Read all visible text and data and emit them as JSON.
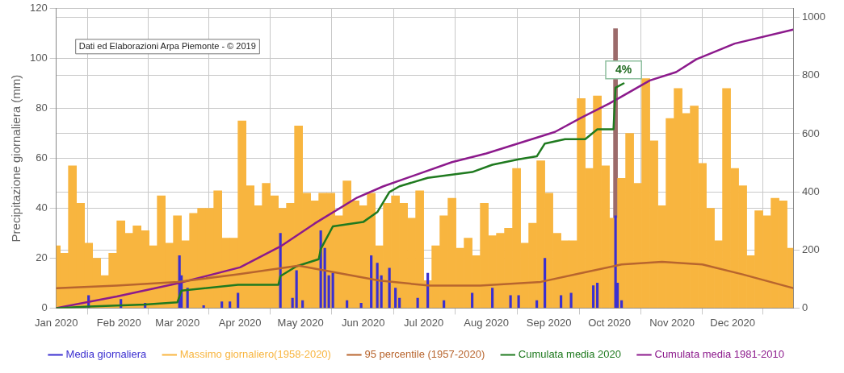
{
  "chart_data": {
    "type": "bar",
    "ylabel": "Precipitazione giornaliera (mm)",
    "xlim": [
      "2020-01-01",
      "2020-12-31"
    ],
    "xticks": [
      {
        "value": "2020-01-01",
        "label": "Jan 2020"
      },
      {
        "value": "2020-02-01",
        "label": "Feb 2020"
      },
      {
        "value": "2020-03-01",
        "label": "Mar 2020"
      },
      {
        "value": "2020-04-01",
        "label": "Apr 2020"
      },
      {
        "value": "2020-05-01",
        "label": "May 2020"
      },
      {
        "value": "2020-06-01",
        "label": "Jun 2020"
      },
      {
        "value": "2020-07-01",
        "label": "Jul 2020"
      },
      {
        "value": "2020-08-01",
        "label": "Aug 2020"
      },
      {
        "value": "2020-09-01",
        "label": "Sep 2020"
      },
      {
        "value": "2020-10-01",
        "label": "Oct 2020"
      },
      {
        "value": "2020-11-01",
        "label": "Nov 2020"
      },
      {
        "value": "2020-12-01",
        "label": "Dec 2020"
      }
    ],
    "ylim": [
      0,
      120
    ],
    "yticks": [
      0,
      20,
      40,
      60,
      80,
      100,
      120
    ],
    "y2lim": [
      0,
      1030
    ],
    "y2ticks": [
      0,
      200,
      400,
      600,
      800,
      1000
    ],
    "grid": true,
    "legend": "bottom",
    "marker": "none",
    "line_style": "solid",
    "annotations": [
      "Dati ed Elaborazioni Arpa Piemonte - © 2019",
      {
        "text": "4%",
        "x": "2020-10-08",
        "y": 90
      }
    ],
    "series": [
      {
        "name": "Media giornaliera",
        "color": "#3b2fd0",
        "x": [
          "2020-01-17",
          "2020-02-02",
          "2020-02-14",
          "2020-03-02",
          "2020-03-03",
          "2020-03-06",
          "2020-03-14",
          "2020-03-23",
          "2020-03-27",
          "2020-03-31",
          "2020-04-21",
          "2020-04-27",
          "2020-04-29",
          "2020-05-02",
          "2020-05-11",
          "2020-05-13",
          "2020-05-15",
          "2020-05-17",
          "2020-05-24",
          "2020-05-31",
          "2020-06-05",
          "2020-06-08",
          "2020-06-10",
          "2020-06-14",
          "2020-06-17",
          "2020-06-19",
          "2020-06-28",
          "2020-07-03",
          "2020-07-11",
          "2020-07-25",
          "2020-08-04",
          "2020-08-13",
          "2020-08-17",
          "2020-08-26",
          "2020-08-30",
          "2020-09-07",
          "2020-09-12",
          "2020-09-23",
          "2020-09-25",
          "2020-10-04",
          "2020-10-05",
          "2020-10-07"
        ],
        "values": [
          5,
          3.5,
          2,
          21,
          13,
          8,
          1,
          2.5,
          2.5,
          6,
          30,
          4,
          15,
          3,
          31,
          24,
          13,
          14,
          3,
          2,
          21,
          18,
          13,
          16,
          8,
          4,
          4,
          14,
          3,
          6,
          8,
          5,
          5,
          3,
          20,
          5,
          6,
          9,
          10,
          37,
          10,
          3
        ]
      },
      {
        "name": "Massimo giornaliero(1958-2020)",
        "color": "#f8b53f",
        "x": [
          "2020-01-01",
          "2020-01-05",
          "2020-01-09",
          "2020-01-13",
          "2020-01-17",
          "2020-01-21",
          "2020-01-25",
          "2020-01-29",
          "2020-02-02",
          "2020-02-06",
          "2020-02-10",
          "2020-02-14",
          "2020-02-18",
          "2020-02-22",
          "2020-02-26",
          "2020-03-01",
          "2020-03-05",
          "2020-03-09",
          "2020-03-13",
          "2020-03-17",
          "2020-03-21",
          "2020-03-25",
          "2020-03-29",
          "2020-04-02",
          "2020-04-06",
          "2020-04-10",
          "2020-04-14",
          "2020-04-18",
          "2020-04-22",
          "2020-04-26",
          "2020-04-30",
          "2020-05-04",
          "2020-05-08",
          "2020-05-12",
          "2020-05-16",
          "2020-05-20",
          "2020-05-24",
          "2020-05-28",
          "2020-06-01",
          "2020-06-05",
          "2020-06-09",
          "2020-06-13",
          "2020-06-17",
          "2020-06-21",
          "2020-06-25",
          "2020-06-29",
          "2020-07-03",
          "2020-07-07",
          "2020-07-11",
          "2020-07-15",
          "2020-07-19",
          "2020-07-23",
          "2020-07-27",
          "2020-07-31",
          "2020-08-04",
          "2020-08-08",
          "2020-08-12",
          "2020-08-16",
          "2020-08-20",
          "2020-08-24",
          "2020-08-28",
          "2020-09-01",
          "2020-09-05",
          "2020-09-09",
          "2020-09-13",
          "2020-09-17",
          "2020-09-21",
          "2020-09-25",
          "2020-09-29",
          "2020-10-03",
          "2020-10-07",
          "2020-10-11",
          "2020-10-15",
          "2020-10-19",
          "2020-10-23",
          "2020-10-27",
          "2020-10-31",
          "2020-11-04",
          "2020-11-08",
          "2020-11-12",
          "2020-11-16",
          "2020-11-20",
          "2020-11-24",
          "2020-11-28",
          "2020-12-02",
          "2020-12-06",
          "2020-12-10",
          "2020-12-14",
          "2020-12-18",
          "2020-12-22",
          "2020-12-26",
          "2020-12-30"
        ],
        "values": [
          25,
          22,
          57,
          42,
          26,
          20,
          13,
          22,
          35,
          30,
          33,
          31,
          25,
          45,
          26,
          37,
          27,
          38,
          40,
          40,
          47,
          28,
          28,
          75,
          49,
          41,
          50,
          45,
          40,
          42,
          73,
          46,
          43,
          46,
          46,
          37,
          51,
          43,
          41,
          46,
          25,
          42,
          45,
          42,
          36,
          47,
          11,
          25,
          37,
          44,
          24,
          28,
          21,
          42,
          29,
          30,
          32,
          56,
          26,
          34,
          59,
          46,
          30,
          27,
          27,
          84,
          56,
          85,
          57,
          36,
          52,
          70,
          50,
          92,
          67,
          41,
          76,
          88,
          78,
          81,
          58,
          40,
          27,
          88,
          56,
          49,
          21,
          39,
          37,
          44,
          43,
          24
        ]
      },
      {
        "name": "95 percentile (1957-2020)",
        "type": "line",
        "color": "#b8652e",
        "x": [
          "2020-01-01",
          "2020-01-31",
          "2020-03-01",
          "2020-03-31",
          "2020-04-30",
          "2020-05-20",
          "2020-06-09",
          "2020-07-04",
          "2020-07-29",
          "2020-08-28",
          "2020-09-17",
          "2020-10-07",
          "2020-10-27",
          "2020-11-16",
          "2020-12-06",
          "2020-12-31"
        ],
        "values": [
          8,
          9,
          10.5,
          13.5,
          17,
          14,
          11,
          9,
          9,
          10.5,
          14,
          17.5,
          18.5,
          17.5,
          13.5,
          8
        ]
      },
      {
        "name": "Cumulata media 2020",
        "type": "line",
        "axis": "y2",
        "color": "#1f7a1f",
        "x": [
          "2020-01-01",
          "2020-01-17",
          "2020-02-14",
          "2020-03-01",
          "2020-03-03",
          "2020-03-31",
          "2020-04-20",
          "2020-04-21",
          "2020-04-29",
          "2020-05-10",
          "2020-05-11",
          "2020-05-17",
          "2020-06-01",
          "2020-06-08",
          "2020-06-14",
          "2020-06-19",
          "2020-07-03",
          "2020-07-25",
          "2020-08-04",
          "2020-08-17",
          "2020-08-26",
          "2020-08-30",
          "2020-09-09",
          "2020-09-19",
          "2020-09-25",
          "2020-10-03",
          "2020-10-04",
          "2020-10-08"
        ],
        "values": [
          0,
          5,
          12,
          20,
          60,
          80,
          80,
          110,
          144,
          168,
          203,
          281,
          296,
          330,
          399,
          419,
          448,
          468,
          493,
          512,
          522,
          566,
          581,
          581,
          615,
          615,
          758,
          773
        ]
      },
      {
        "name": "Cumulata media 1981-2010",
        "type": "line",
        "axis": "y2",
        "color": "#8c1a8c",
        "x": [
          "2020-01-01",
          "2020-01-31",
          "2020-03-01",
          "2020-04-01",
          "2020-04-21",
          "2020-05-08",
          "2020-05-29",
          "2020-06-11",
          "2020-07-15",
          "2020-08-01",
          "2020-09-04",
          "2020-09-17",
          "2020-10-01",
          "2020-10-21",
          "2020-11-03",
          "2020-11-13",
          "2020-12-02",
          "2020-12-31"
        ],
        "values": [
          0,
          40,
          85,
          140,
          212,
          291,
          380,
          419,
          502,
          532,
          606,
          655,
          704,
          783,
          812,
          856,
          910,
          958
        ]
      },
      {
        "color": "#9c6b6b",
        "x": [
          "2020-10-04"
        ],
        "values": [
          112
        ]
      }
    ]
  }
}
